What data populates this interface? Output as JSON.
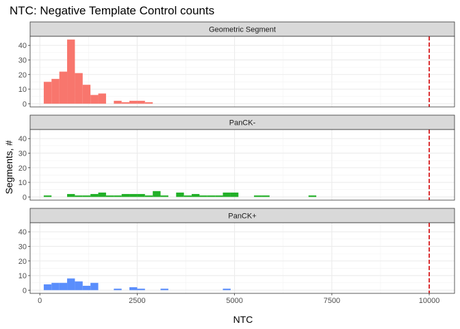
{
  "chart_data": {
    "type": "bar",
    "title": "NTC: Negative Template Control counts",
    "xlabel": "NTC",
    "ylabel": "Segments, #",
    "xlim": [
      -250,
      10650
    ],
    "ylim": [
      -2.2,
      46.2
    ],
    "x_ticks": [
      0,
      2500,
      5000,
      7500,
      10000
    ],
    "y_ticks": [
      0,
      10,
      20,
      30,
      40
    ],
    "bin_width": 200,
    "grid": true,
    "reference_line": {
      "x": 10000,
      "color": "#d7191c",
      "style": "dashed"
    },
    "panels": [
      {
        "name": "Geometric Segment",
        "color": "#f8766d",
        "bins": [
          {
            "x": 200,
            "y": 15
          },
          {
            "x": 400,
            "y": 17
          },
          {
            "x": 600,
            "y": 22
          },
          {
            "x": 800,
            "y": 44
          },
          {
            "x": 1000,
            "y": 21
          },
          {
            "x": 1200,
            "y": 13
          },
          {
            "x": 1400,
            "y": 6
          },
          {
            "x": 1600,
            "y": 7
          },
          {
            "x": 2000,
            "y": 2
          },
          {
            "x": 2200,
            "y": 1
          },
          {
            "x": 2400,
            "y": 2
          },
          {
            "x": 2600,
            "y": 2
          },
          {
            "x": 2800,
            "y": 1
          }
        ]
      },
      {
        "name": "PanCK-",
        "color": "#22b028",
        "bins": [
          {
            "x": 200,
            "y": 1
          },
          {
            "x": 800,
            "y": 2
          },
          {
            "x": 1000,
            "y": 1
          },
          {
            "x": 1200,
            "y": 1
          },
          {
            "x": 1400,
            "y": 2
          },
          {
            "x": 1600,
            "y": 3
          },
          {
            "x": 1800,
            "y": 1
          },
          {
            "x": 2000,
            "y": 1
          },
          {
            "x": 2200,
            "y": 2
          },
          {
            "x": 2400,
            "y": 2
          },
          {
            "x": 2600,
            "y": 2
          },
          {
            "x": 2800,
            "y": 1
          },
          {
            "x": 3000,
            "y": 4
          },
          {
            "x": 3200,
            "y": 1
          },
          {
            "x": 3600,
            "y": 3
          },
          {
            "x": 3800,
            "y": 1
          },
          {
            "x": 4000,
            "y": 2
          },
          {
            "x": 4200,
            "y": 1
          },
          {
            "x": 4400,
            "y": 1
          },
          {
            "x": 4600,
            "y": 1
          },
          {
            "x": 4800,
            "y": 3
          },
          {
            "x": 5000,
            "y": 3
          },
          {
            "x": 5600,
            "y": 1
          },
          {
            "x": 5800,
            "y": 1
          },
          {
            "x": 7000,
            "y": 1
          }
        ]
      },
      {
        "name": "PanCK+",
        "color": "#5a8efc",
        "bins": [
          {
            "x": 200,
            "y": 4
          },
          {
            "x": 400,
            "y": 5
          },
          {
            "x": 600,
            "y": 5
          },
          {
            "x": 800,
            "y": 8
          },
          {
            "x": 1000,
            "y": 6
          },
          {
            "x": 1200,
            "y": 3
          },
          {
            "x": 1400,
            "y": 5
          },
          {
            "x": 2000,
            "y": 1
          },
          {
            "x": 2400,
            "y": 2
          },
          {
            "x": 2600,
            "y": 1
          },
          {
            "x": 3200,
            "y": 1
          },
          {
            "x": 4800,
            "y": 1
          }
        ]
      }
    ]
  }
}
